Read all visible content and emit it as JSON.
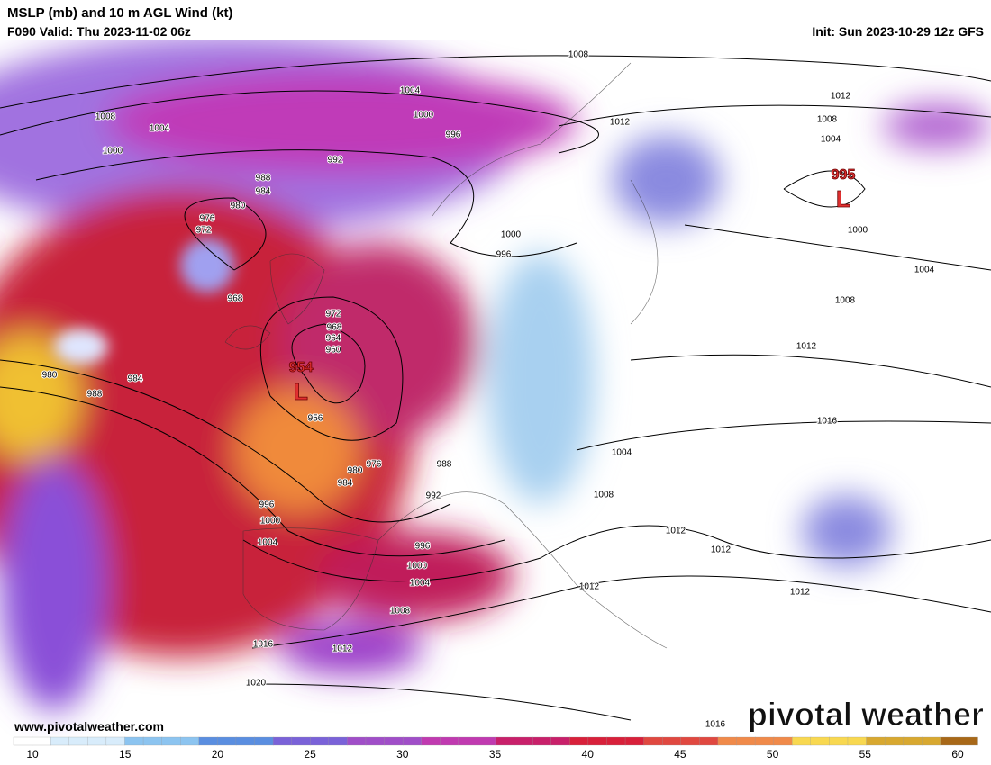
{
  "header": {
    "title": "MSLP (mb) and 10 m AGL Wind (kt)",
    "valid": "F090 Valid: Thu 2023-11-02 06z",
    "init": "Init: Sun 2023-10-29 12z GFS"
  },
  "map": {
    "lows": [
      {
        "pressure": "954",
        "symbol": "L"
      },
      {
        "pressure": "995",
        "symbol": "L"
      }
    ],
    "isobar_labels": [
      "1008",
      "1004",
      "1000",
      "996",
      "992",
      "988",
      "984",
      "980",
      "976",
      "972",
      "968",
      "972",
      "968",
      "964",
      "960",
      "980",
      "984",
      "988",
      "956",
      "976",
      "980",
      "984",
      "988",
      "992",
      "996",
      "1000",
      "1004",
      "996",
      "1000",
      "1004",
      "1008",
      "1016",
      "1012",
      "1020",
      "1016",
      "1012",
      "1012",
      "1012",
      "1012",
      "1008",
      "1004",
      "1016",
      "1012",
      "1008",
      "1004",
      "1000",
      "1000",
      "996",
      "1012",
      "1012",
      "1008",
      "1004",
      "1008",
      "1004",
      "1000"
    ]
  },
  "footer": {
    "url": "www.pivotalweather.com",
    "logo": "pivotal weather"
  },
  "colorbar": {
    "ticks": [
      10,
      15,
      20,
      25,
      30,
      35,
      40,
      45,
      50,
      55,
      60
    ]
  }
}
